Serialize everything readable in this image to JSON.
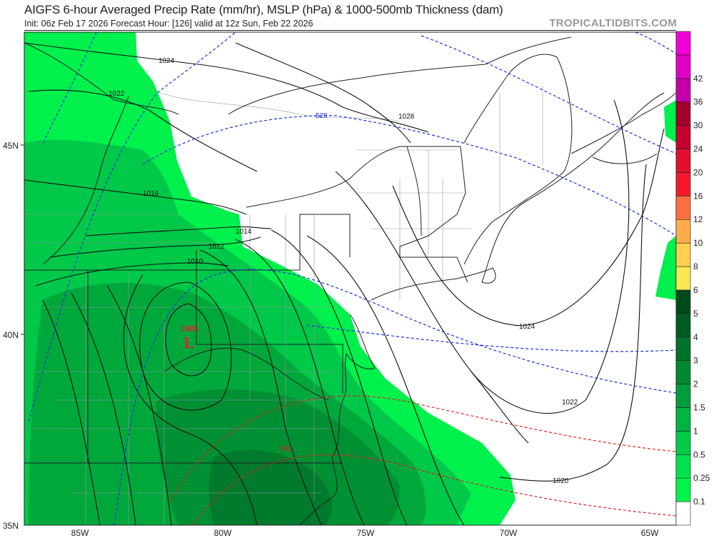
{
  "header": {
    "title": "AIGFS 6-hour Averaged Precip Rate (mm/hr), MSLP (hPa) & 1000-500mb Thickness (dam)",
    "subtitle": "Init: 06z Feb 17 2026   Forecast Hour: [126]   valid at 12z Sun, Feb 22 2026",
    "brand": "TROPICALTIDBITS.COM"
  },
  "axes": {
    "latitude_labels": [
      "45N",
      "40N",
      "35N"
    ],
    "longitude_labels": [
      "85W",
      "80W",
      "75W",
      "70W",
      "65W"
    ]
  },
  "low_center": {
    "pressure": "1005",
    "symbol": "L",
    "color": "#e8202a"
  },
  "isobar_labels": [
    "1024",
    "1022",
    "1016",
    "1014",
    "1012",
    "1010",
    "1028",
    "1024",
    "1022",
    "1020"
  ],
  "thickness_labels": [
    "528",
    "552"
  ],
  "colorbar": {
    "units": "mm/hr",
    "labels": [
      "0.1",
      "0.25",
      "0.5",
      "1",
      "1.5",
      "2",
      "3",
      "4",
      "5",
      "6",
      "8",
      "10",
      "12",
      "16",
      "20",
      "24",
      "30",
      "36",
      "42"
    ],
    "colors": [
      "#ffffff",
      "#00f54a",
      "#00e34e",
      "#00cc48",
      "#00b442",
      "#009d3a",
      "#008832",
      "#00722a",
      "#005c22",
      "#004a1c",
      "#ffe655",
      "#ffcf4f",
      "#ffad4c",
      "#ff7040",
      "#f5182c",
      "#e0102c",
      "#c4002e",
      "#a3002c",
      "#c400a6",
      "#e000c4",
      "#f000d4"
    ]
  },
  "precip_colors": {
    "light": "#00f04c",
    "moderate": "#00c848",
    "heavy": "#00a83c",
    "heavier": "#009034",
    "heaviest": "#007a2c"
  }
}
